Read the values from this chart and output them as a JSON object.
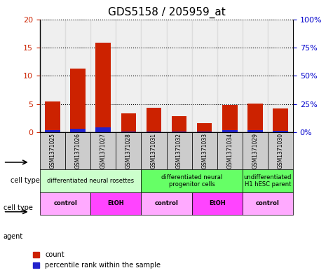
{
  "title": "GDS5158 / 205959_at",
  "samples": [
    "GSM1371025",
    "GSM1371026",
    "GSM1371027",
    "GSM1371028",
    "GSM1371031",
    "GSM1371032",
    "GSM1371033",
    "GSM1371034",
    "GSM1371029",
    "GSM1371030"
  ],
  "count_values": [
    5.4,
    11.3,
    15.8,
    3.4,
    4.3,
    2.9,
    1.6,
    4.8,
    5.1,
    4.2
  ],
  "percentile_values": [
    1.8,
    3.3,
    4.6,
    0.9,
    0.9,
    0.8,
    0.7,
    1.6,
    1.6,
    1.3
  ],
  "bar_color": "#cc2200",
  "percentile_color": "#2222cc",
  "ylim_left": [
    0,
    20
  ],
  "ylim_right": [
    0,
    100
  ],
  "yticks_left": [
    0,
    5,
    10,
    15,
    20
  ],
  "yticks_right": [
    0,
    25,
    50,
    75,
    100
  ],
  "ytick_labels_left": [
    "0",
    "5",
    "10",
    "15",
    "20"
  ],
  "ytick_labels_right": [
    "0%",
    "25%",
    "50%",
    "75%",
    "100%"
  ],
  "cell_type_groups": [
    {
      "label": "differentiated neural rosettes",
      "start": 0,
      "end": 3,
      "color": "#ccffcc"
    },
    {
      "label": "differentiated neural\nprogenitor cells",
      "start": 4,
      "end": 7,
      "color": "#66ff66"
    },
    {
      "label": "undifferentiated\nH1 hESC parent",
      "start": 8,
      "end": 9,
      "color": "#66ff66"
    }
  ],
  "agent_groups": [
    {
      "label": "control",
      "start": 0,
      "end": 1,
      "color": "#ffaaff"
    },
    {
      "label": "EtOH",
      "start": 2,
      "end": 3,
      "color": "#ff44ff"
    },
    {
      "label": "control",
      "start": 4,
      "end": 5,
      "color": "#ffaaff"
    },
    {
      "label": "EtOH",
      "start": 6,
      "end": 7,
      "color": "#ff44ff"
    },
    {
      "label": "control",
      "start": 8,
      "end": 9,
      "color": "#ffaaff"
    }
  ],
  "cell_type_label": "cell type",
  "agent_label": "agent",
  "legend_count": "count",
  "legend_percentile": "percentile rank within the sample",
  "tick_color_left": "#cc2200",
  "tick_color_right": "#0000cc",
  "grid_color": "#000000",
  "sample_bg_color": "#cccccc"
}
